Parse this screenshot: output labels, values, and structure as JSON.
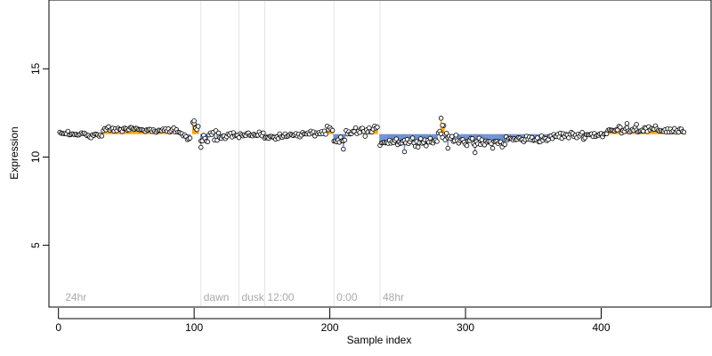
{
  "chart_data": {
    "type": "scatter",
    "xlabel": "Sample index",
    "ylabel": "Expression",
    "xlim": [
      -7,
      481
    ],
    "ylim": [
      1.5,
      18.9
    ],
    "x_ticks": [
      0,
      100,
      200,
      300,
      400
    ],
    "y_ticks": [
      5,
      10,
      15
    ],
    "grid": false,
    "baseline": 11.3,
    "colors": {
      "point_fill": "#ffffff",
      "point_edge": "#000000",
      "above_baseline": "#ffa500",
      "below_baseline": "#6b8fd4",
      "annotation": "#a9a9a9",
      "marker_line": "#e3e3e3"
    },
    "markers": [
      {
        "x": 3,
        "label": "24hr",
        "line": false
      },
      {
        "x": 105,
        "label": "dawn",
        "line": true
      },
      {
        "x": 133,
        "label": "dusk",
        "line": true
      },
      {
        "x": 152,
        "label": "12:00",
        "line": true
      },
      {
        "x": 203,
        "label": "0:00",
        "line": true
      },
      {
        "x": 237,
        "label": "48hr",
        "line": true
      }
    ],
    "segments": [
      {
        "x_start": 1,
        "x_end": 33,
        "start": 11.35,
        "end": 11.2,
        "noise": 0.1
      },
      {
        "x_start": 33,
        "x_end": 88,
        "start": 11.6,
        "end": 11.5,
        "noise": 0.1
      },
      {
        "x_start": 88,
        "x_end": 98,
        "start": 11.4,
        "end": 11.0,
        "noise": 0.12
      },
      {
        "x_start": 99,
        "x_end": 104,
        "start": 11.9,
        "end": 11.6,
        "noise": 0.15
      },
      {
        "x_start": 105,
        "x_end": 133,
        "start": 11.0,
        "end": 11.3,
        "noise": 0.25
      },
      {
        "x_start": 133,
        "x_end": 152,
        "start": 11.2,
        "end": 11.3,
        "noise": 0.15
      },
      {
        "x_start": 152,
        "x_end": 198,
        "start": 11.1,
        "end": 11.4,
        "noise": 0.12
      },
      {
        "x_start": 198,
        "x_end": 203,
        "start": 11.6,
        "end": 11.5,
        "noise": 0.1
      },
      {
        "x_start": 203,
        "x_end": 212,
        "start": 10.8,
        "end": 10.9,
        "noise": 0.2
      },
      {
        "x_start": 212,
        "x_end": 236,
        "start": 11.4,
        "end": 11.5,
        "noise": 0.18
      },
      {
        "x_start": 237,
        "x_end": 280,
        "start": 10.9,
        "end": 10.9,
        "noise": 0.18
      },
      {
        "x_start": 280,
        "x_end": 286,
        "start": 11.5,
        "end": 11.3,
        "noise": 0.3
      },
      {
        "x_start": 286,
        "x_end": 300,
        "start": 11.1,
        "end": 11.0,
        "noise": 0.18
      },
      {
        "x_start": 300,
        "x_end": 330,
        "start": 10.8,
        "end": 10.8,
        "noise": 0.2
      },
      {
        "x_start": 330,
        "x_end": 365,
        "start": 11.0,
        "end": 11.05,
        "noise": 0.15
      },
      {
        "x_start": 365,
        "x_end": 405,
        "start": 11.2,
        "end": 11.3,
        "noise": 0.15
      },
      {
        "x_start": 405,
        "x_end": 412,
        "start": 11.5,
        "end": 11.5,
        "noise": 0.1
      },
      {
        "x_start": 412,
        "x_end": 462,
        "start": 11.6,
        "end": 11.5,
        "noise": 0.15
      }
    ],
    "outliers": [
      {
        "x": 100,
        "y": 12.05
      },
      {
        "x": 105,
        "y": 10.55
      },
      {
        "x": 210,
        "y": 10.45
      },
      {
        "x": 255,
        "y": 10.3
      },
      {
        "x": 282,
        "y": 12.2
      },
      {
        "x": 283,
        "y": 11.8
      },
      {
        "x": 287,
        "y": 10.5
      },
      {
        "x": 307,
        "y": 10.25
      },
      {
        "x": 419,
        "y": 11.9
      },
      {
        "x": 426,
        "y": 11.85
      }
    ]
  }
}
